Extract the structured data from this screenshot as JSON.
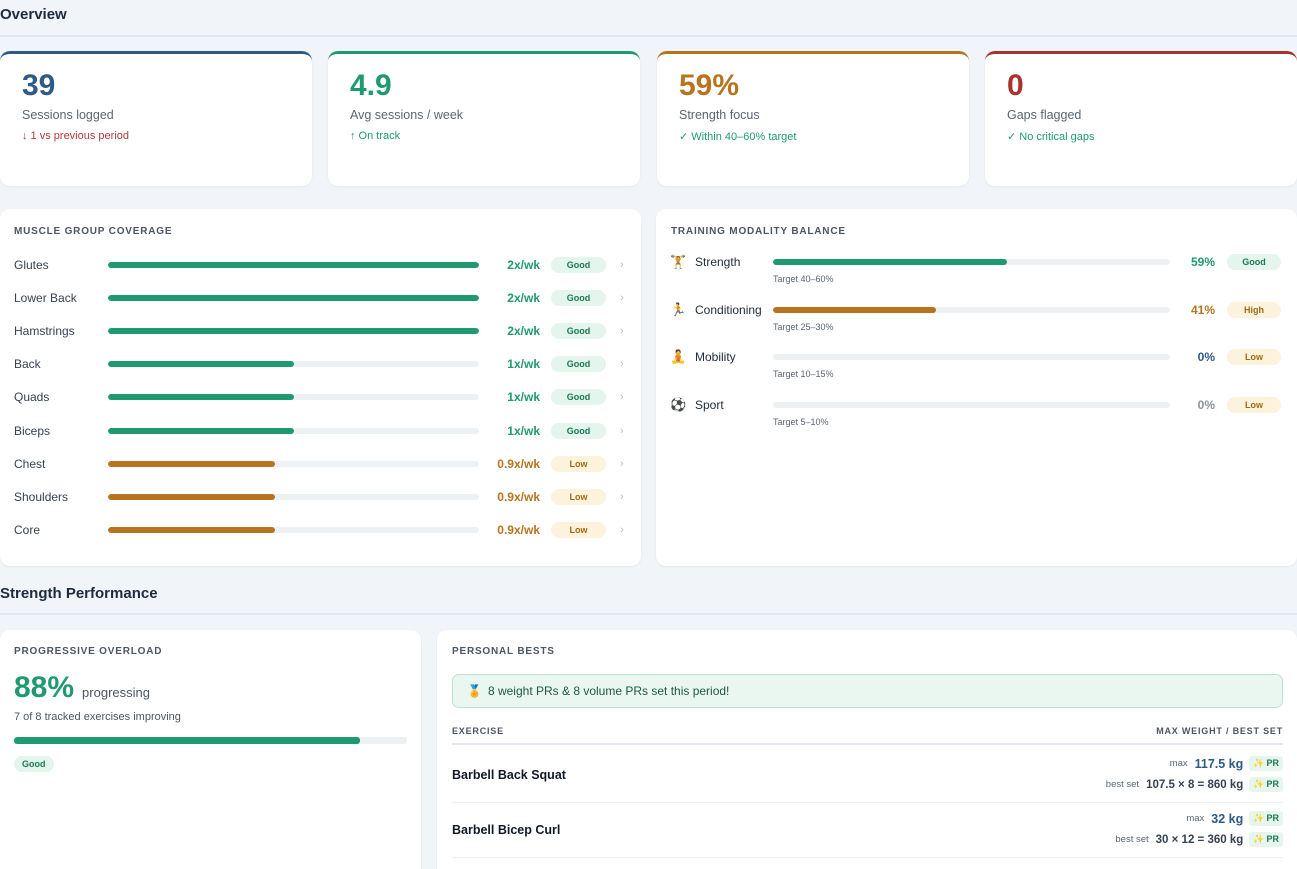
{
  "overview": {
    "title": "Overview"
  },
  "kpis": [
    {
      "value": "39",
      "label": "Sessions logged",
      "sub": "↓ 1 vs previous period",
      "color": "#2d5a86",
      "sub_color": "#b23a3a"
    },
    {
      "value": "4.9",
      "label": "Avg sessions / week",
      "sub": "↑ On track",
      "color": "#1f9a70",
      "sub_color": "#1f9a70"
    },
    {
      "value": "59%",
      "label": "Strength focus",
      "sub": "✓ Within 40–60% target",
      "color": "#b8731f",
      "sub_color": "#1f9a70"
    },
    {
      "value": "0",
      "label": "Gaps flagged",
      "sub": "✓ No critical gaps",
      "color": "#a8322d",
      "sub_color": "#1f9a70"
    }
  ],
  "colors": {
    "good": "#1f9a70",
    "warn": "#b8731f",
    "muted": "#5b6573"
  },
  "muscle": {
    "title": "Muscle Group Coverage",
    "rows": [
      {
        "name": "Glutes",
        "freq": "2x/wk",
        "badge": "Good",
        "level": 1.0,
        "status": "good"
      },
      {
        "name": "Lower Back",
        "freq": "2x/wk",
        "badge": "Good",
        "level": 1.0,
        "status": "good"
      },
      {
        "name": "Hamstrings",
        "freq": "2x/wk",
        "badge": "Good",
        "level": 1.0,
        "status": "good"
      },
      {
        "name": "Back",
        "freq": "1x/wk",
        "badge": "Good",
        "level": 0.5,
        "status": "good"
      },
      {
        "name": "Quads",
        "freq": "1x/wk",
        "badge": "Good",
        "level": 0.5,
        "status": "good"
      },
      {
        "name": "Biceps",
        "freq": "1x/wk",
        "badge": "Good",
        "level": 0.5,
        "status": "good"
      },
      {
        "name": "Chest",
        "freq": "0.9x/wk",
        "badge": "Low",
        "level": 0.45,
        "status": "low"
      },
      {
        "name": "Shoulders",
        "freq": "0.9x/wk",
        "badge": "Low",
        "level": 0.45,
        "status": "low"
      },
      {
        "name": "Core",
        "freq": "0.9x/wk",
        "badge": "Low",
        "level": 0.45,
        "status": "low"
      }
    ]
  },
  "modality": {
    "title": "Training Modality Balance",
    "rows": [
      {
        "icon": "🏋",
        "icon_name": "weightlifter-icon",
        "name": "Strength",
        "pct": "59%",
        "level": 0.59,
        "target": "Target 40–60%",
        "badge": "Good",
        "status": "good"
      },
      {
        "icon": "🏃",
        "icon_name": "runner-icon",
        "name": "Conditioning",
        "pct": "41%",
        "level": 0.41,
        "target": "Target 25–30%",
        "badge": "High",
        "status": "high"
      },
      {
        "icon": "🧘",
        "icon_name": "yoga-icon",
        "name": "Mobility",
        "pct": "0%",
        "level": 0,
        "target": "Target 10–15%",
        "badge": "Low",
        "status": "low-zero"
      },
      {
        "icon": "⚽",
        "icon_name": "soccer-ball-icon",
        "name": "Sport",
        "pct": "0%",
        "level": 0,
        "target": "Target 5–10%",
        "badge": "Low",
        "status": "low-muted"
      }
    ]
  },
  "strength": {
    "title": "Strength Performance"
  },
  "overload": {
    "title": "Progressive Overload",
    "value": "88%",
    "suffix": "progressing",
    "sub": "7 of 8 tracked exercises improving",
    "level": 0.88,
    "badge": "Good"
  },
  "personal_bests": {
    "title": "Personal Bests",
    "banner_icon": "🏅",
    "banner": "8 weight PRs & 8 volume PRs set this period!",
    "col_exercise": "Exercise",
    "col_right": "Max weight / best set",
    "rows": [
      {
        "name": "Barbell Back Squat",
        "max_label": "max",
        "max": "117.5 kg",
        "best_label": "best set",
        "best": "107.5 × 8 = 860 kg",
        "pr_icon": "✨",
        "pr": "PR"
      },
      {
        "name": "Barbell Bicep Curl",
        "max_label": "max",
        "max": "32 kg",
        "best_label": "best set",
        "best": "30 × 12 = 360 kg",
        "pr_icon": "✨",
        "pr": "PR"
      }
    ]
  }
}
